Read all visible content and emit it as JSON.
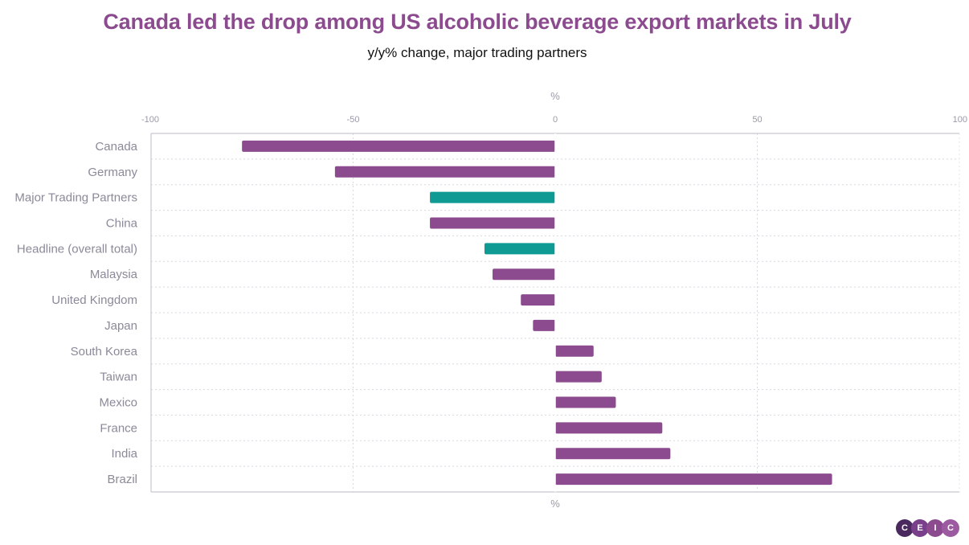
{
  "title": "Canada led the drop among US alcoholic beverage export markets in July",
  "subtitle": "y/y% change, major trading partners",
  "logo": {
    "letters": [
      "C",
      "E",
      "I",
      "C"
    ],
    "colors": [
      "#4a2a5e",
      "#7a3f8a",
      "#8b4b8e",
      "#9c5aa0"
    ]
  },
  "colors": {
    "country": "#8b4b8e",
    "aggregate": "#0f9b94",
    "title": "#8b4b8e"
  },
  "chart_data": {
    "type": "bar",
    "orientation": "horizontal",
    "xlabel": "%",
    "xlim": [
      -100,
      100
    ],
    "xticks": [
      -100,
      -50,
      0,
      50,
      100
    ],
    "grid": true,
    "categories": [
      "Canada",
      "Germany",
      "Major Trading Partners",
      "China",
      "Headline (overall total)",
      "Malaysia",
      "United Kingdom",
      "Japan",
      "South Korea",
      "Taiwan",
      "Mexico",
      "France",
      "India",
      "Brazil"
    ],
    "values": [
      -77.5,
      -54.5,
      -31,
      -31,
      -17.5,
      -15.5,
      -8.5,
      -5.5,
      9.5,
      11.5,
      15,
      26.5,
      28.5,
      68.5
    ],
    "kinds": [
      "country",
      "country",
      "aggregate",
      "country",
      "aggregate",
      "country",
      "country",
      "country",
      "country",
      "country",
      "country",
      "country",
      "country",
      "country"
    ]
  }
}
